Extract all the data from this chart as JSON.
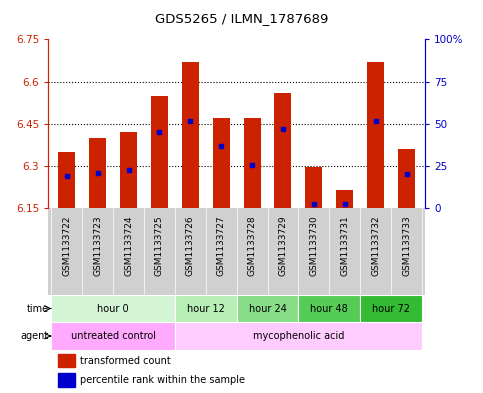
{
  "title": "GDS5265 / ILMN_1787689",
  "samples": [
    "GSM1133722",
    "GSM1133723",
    "GSM1133724",
    "GSM1133725",
    "GSM1133726",
    "GSM1133727",
    "GSM1133728",
    "GSM1133729",
    "GSM1133730",
    "GSM1133731",
    "GSM1133732",
    "GSM1133733"
  ],
  "bar_tops": [
    6.35,
    6.4,
    6.42,
    6.55,
    6.67,
    6.47,
    6.47,
    6.56,
    6.295,
    6.215,
    6.67,
    6.36
  ],
  "bar_bottom": 6.15,
  "blue_values": [
    6.265,
    6.275,
    6.285,
    6.42,
    6.46,
    6.37,
    6.305,
    6.43,
    6.165,
    6.165,
    6.46,
    6.27
  ],
  "ylim_left": [
    6.15,
    6.75
  ],
  "yticks_left": [
    6.15,
    6.3,
    6.45,
    6.6,
    6.75
  ],
  "yticks_right": [
    0,
    25,
    50,
    75,
    100
  ],
  "ytick_labels_left": [
    "6.15",
    "6.3",
    "6.45",
    "6.6",
    "6.75"
  ],
  "ytick_labels_right": [
    "0",
    "25",
    "50",
    "75",
    "100%"
  ],
  "left_axis_color": "#cc2200",
  "right_axis_color": "#0000cc",
  "bar_color": "#cc2200",
  "blue_marker_color": "#0000cc",
  "time_groups": [
    {
      "label": "hour 0",
      "start": 0,
      "end": 4,
      "color": "#d4f5d4"
    },
    {
      "label": "hour 12",
      "start": 4,
      "end": 6,
      "color": "#b8eeb8"
    },
    {
      "label": "hour 24",
      "start": 6,
      "end": 8,
      "color": "#88dd88"
    },
    {
      "label": "hour 48",
      "start": 8,
      "end": 10,
      "color": "#55cc55"
    },
    {
      "label": "hour 72",
      "start": 10,
      "end": 12,
      "color": "#33bb33"
    }
  ],
  "agent_groups": [
    {
      "label": "untreated control",
      "start": 0,
      "end": 4,
      "color": "#ffaaff"
    },
    {
      "label": "mycophenolic acid",
      "start": 4,
      "end": 12,
      "color": "#ffccff"
    }
  ],
  "legend_items": [
    {
      "label": "transformed count",
      "color": "#cc2200"
    },
    {
      "label": "percentile rank within the sample",
      "color": "#0000cc"
    }
  ]
}
